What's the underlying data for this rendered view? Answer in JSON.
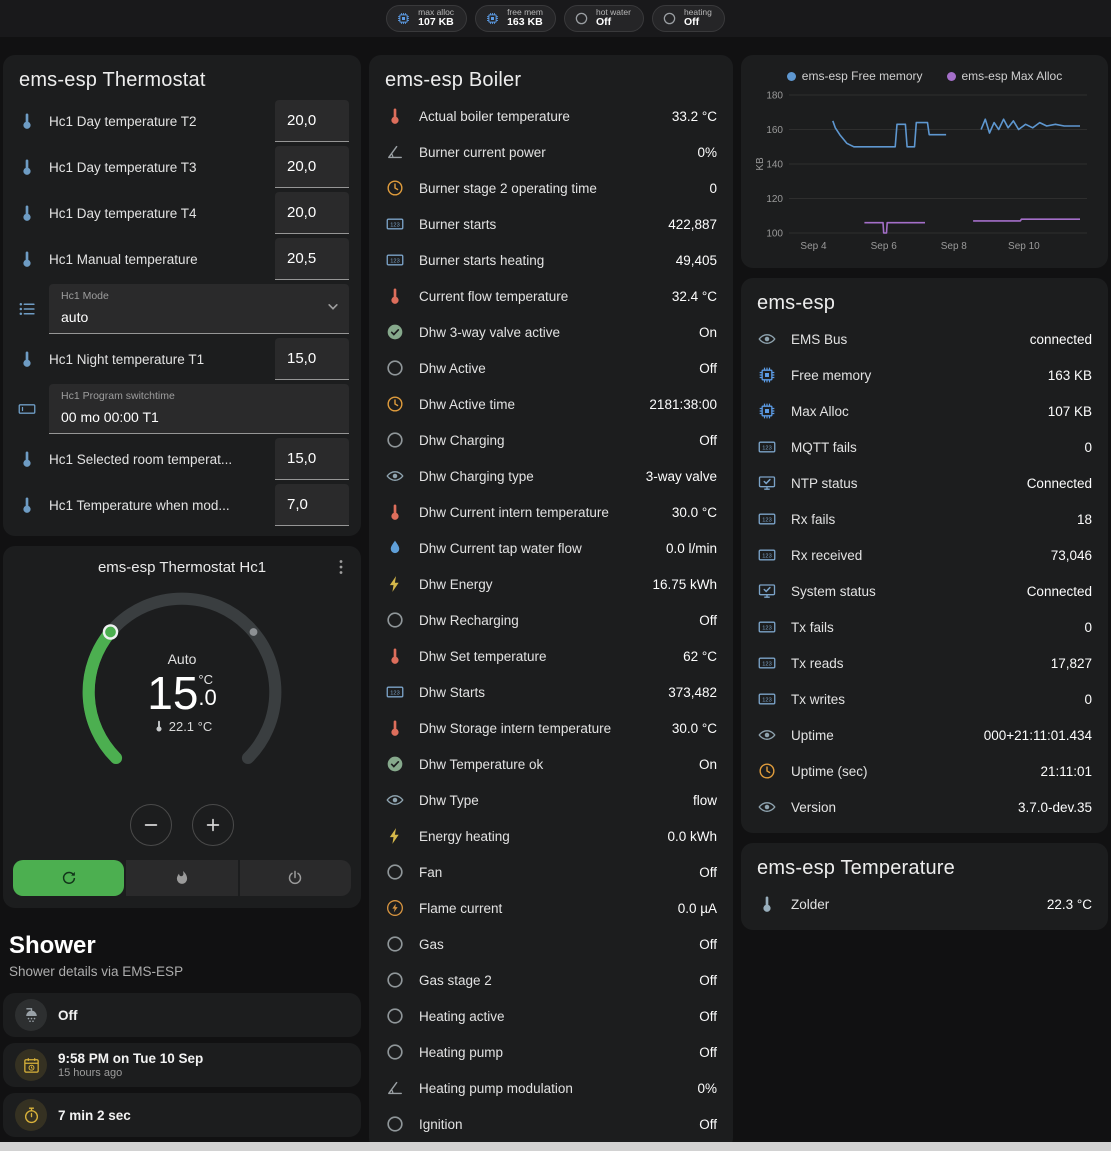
{
  "colors": {
    "page_bg": "#111112",
    "card_bg": "#1c1d1e",
    "accent_green": "#4caf50",
    "free_memory_line": "#5e97d0",
    "max_alloc_line": "#a46fc9"
  },
  "header": {
    "pills": [
      {
        "icon": "memory-icon",
        "color": "#5c9ce6",
        "label": "max alloc",
        "value": "107 KB"
      },
      {
        "icon": "memory-icon",
        "color": "#5c9ce6",
        "label": "free mem",
        "value": "163 KB"
      },
      {
        "icon": "circle-icon",
        "color": "#9b9fa3",
        "label": "hot water",
        "value": "Off"
      },
      {
        "icon": "circle-icon",
        "color": "#9b9fa3",
        "label": "heating",
        "value": "Off"
      }
    ]
  },
  "thermostat_card": {
    "title": "ems-esp Thermostat",
    "rows": [
      {
        "type": "number",
        "icon": "thermometer-water-icon",
        "color": "#6e9cc4",
        "label": "Hc1 Day temperature T2",
        "value": "20,0"
      },
      {
        "type": "number",
        "icon": "thermometer-water-icon",
        "color": "#6e9cc4",
        "label": "Hc1 Day temperature T3",
        "value": "20,0"
      },
      {
        "type": "number",
        "icon": "thermometer-water-icon",
        "color": "#6e9cc4",
        "label": "Hc1 Day temperature T4",
        "value": "20,0"
      },
      {
        "type": "number",
        "icon": "thermometer-water-icon",
        "color": "#6e9cc4",
        "label": "Hc1 Manual temperature",
        "value": "20,5"
      },
      {
        "type": "select",
        "icon": "list-icon",
        "color": "#6e9cc4",
        "label": "Hc1 Mode",
        "value": "auto"
      },
      {
        "type": "number",
        "icon": "thermometer-water-icon",
        "color": "#6e9cc4",
        "label": "Hc1 Night temperature T1",
        "value": "15,0"
      },
      {
        "type": "textfield",
        "icon": "textbox-icon",
        "color": "#6e9cc4",
        "label": "Hc1 Program switchtime",
        "value": "00 mo 00:00 T1"
      },
      {
        "type": "number",
        "icon": "thermometer-water-icon",
        "color": "#6e9cc4",
        "label": "Hc1 Selected room temperat...",
        "value": "15,0"
      },
      {
        "type": "number",
        "icon": "thermometer-water-icon",
        "color": "#6e9cc4",
        "label": "Hc1 Temperature when mod...",
        "value": "7,0"
      }
    ]
  },
  "hc1_card": {
    "title": "ems-esp Thermostat Hc1",
    "mode": "Auto",
    "target_int": "15",
    "target_frac": ".0",
    "unit": "°C",
    "current": "22.1 °C"
  },
  "shower": {
    "heading": "Shower",
    "subtitle": "Shower details via EMS-ESP",
    "tiles": [
      {
        "icon": "shower-icon",
        "color": "#9aa2a8",
        "primary": "Off",
        "secondary": ""
      },
      {
        "icon": "calendar-clock-icon",
        "color": "#d9b23a",
        "primary": "9:58 PM on Tue 10 Sep",
        "secondary": "15 hours ago"
      },
      {
        "icon": "timer-icon",
        "color": "#d9b23a",
        "primary": "7 min 2 sec",
        "secondary": ""
      }
    ]
  },
  "boiler_card": {
    "title": "ems-esp Boiler",
    "rows": [
      {
        "icon": "thermometer-icon",
        "color": "#dd6e5c",
        "label": "Actual boiler temperature",
        "value": "33.2 °C"
      },
      {
        "icon": "angle-icon",
        "color": "#9aa0a4",
        "label": "Burner current power",
        "value": "0%"
      },
      {
        "icon": "clock-icon",
        "color": "#de9b3c",
        "label": "Burner stage 2 operating time",
        "value": "0"
      },
      {
        "icon": "counter-icon",
        "color": "#7ba3c8",
        "label": "Burner starts",
        "value": "422,887"
      },
      {
        "icon": "counter-icon",
        "color": "#7ba3c8",
        "label": "Burner starts heating",
        "value": "49,405"
      },
      {
        "icon": "thermometer-icon",
        "color": "#dd6e5c",
        "label": "Current flow temperature",
        "value": "32.4 °C"
      },
      {
        "icon": "check-circle-icon",
        "color": "#86a98c",
        "label": "Dhw 3-way valve active",
        "value": "On"
      },
      {
        "icon": "circle-icon",
        "color": "#8f9699",
        "label": "Dhw Active",
        "value": "Off"
      },
      {
        "icon": "clock-icon",
        "color": "#de9b3c",
        "label": "Dhw Active time",
        "value": "2181:38:00"
      },
      {
        "icon": "circle-icon",
        "color": "#8f9699",
        "label": "Dhw Charging",
        "value": "Off"
      },
      {
        "icon": "eye-icon",
        "color": "#8fa4b0",
        "label": "Dhw Charging type",
        "value": "3-way valve"
      },
      {
        "icon": "thermometer-icon",
        "color": "#dd6e5c",
        "label": "Dhw Current intern temperature",
        "value": "30.0 °C"
      },
      {
        "icon": "water-pump-icon",
        "color": "#5f9fd8",
        "label": "Dhw Current tap water flow",
        "value": "0.0 l/min"
      },
      {
        "icon": "flash-icon",
        "color": "#d4b74a",
        "label": "Dhw Energy",
        "value": "16.75 kWh"
      },
      {
        "icon": "circle-icon",
        "color": "#8f9699",
        "label": "Dhw Recharging",
        "value": "Off"
      },
      {
        "icon": "thermometer-icon",
        "color": "#dd6e5c",
        "label": "Dhw Set temperature",
        "value": "62 °C"
      },
      {
        "icon": "counter-icon",
        "color": "#7ba3c8",
        "label": "Dhw Starts",
        "value": "373,482"
      },
      {
        "icon": "thermometer-icon",
        "color": "#dd6e5c",
        "label": "Dhw Storage intern temperature",
        "value": "30.0 °C"
      },
      {
        "icon": "check-circle-icon",
        "color": "#86a98c",
        "label": "Dhw Temperature ok",
        "value": "On"
      },
      {
        "icon": "eye-icon",
        "color": "#8fa4b0",
        "label": "Dhw Type",
        "value": "flow"
      },
      {
        "icon": "flash-icon",
        "color": "#d4b74a",
        "label": "Energy heating",
        "value": "0.0 kWh"
      },
      {
        "icon": "circle-icon",
        "color": "#8f9699",
        "label": "Fan",
        "value": "Off"
      },
      {
        "icon": "flash-circle-icon",
        "color": "#d79440",
        "label": "Flame current",
        "value": "0.0 µA"
      },
      {
        "icon": "circle-icon",
        "color": "#8f9699",
        "label": "Gas",
        "value": "Off"
      },
      {
        "icon": "circle-icon",
        "color": "#8f9699",
        "label": "Gas stage 2",
        "value": "Off"
      },
      {
        "icon": "circle-icon",
        "color": "#8f9699",
        "label": "Heating active",
        "value": "Off"
      },
      {
        "icon": "circle-icon",
        "color": "#8f9699",
        "label": "Heating pump",
        "value": "Off"
      },
      {
        "icon": "angle-icon",
        "color": "#9aa0a4",
        "label": "Heating pump modulation",
        "value": "0%"
      },
      {
        "icon": "circle-icon",
        "color": "#8f9699",
        "label": "Ignition",
        "value": "Off"
      }
    ]
  },
  "chart_card": {
    "chart_data": {
      "type": "line",
      "title": "",
      "ylabel": "KB",
      "ylim": [
        100,
        180
      ],
      "yticks": [
        100,
        120,
        140,
        160,
        180
      ],
      "xlim": [
        3.3,
        11.8
      ],
      "xticks": [
        {
          "x": 4,
          "label": "Sep 4"
        },
        {
          "x": 6,
          "label": "Sep 6"
        },
        {
          "x": 8,
          "label": "Sep 8"
        },
        {
          "x": 10,
          "label": "Sep 10"
        }
      ],
      "legend_position": "top",
      "grid": true,
      "series": [
        {
          "name": "ems-esp Free memory",
          "color": "#5e97d0",
          "segments": [
            [
              [
                4.55,
                165
              ],
              [
                4.62,
                161
              ],
              [
                4.75,
                157
              ],
              [
                4.95,
                152
              ],
              [
                5.15,
                150
              ],
              [
                6.33,
                150
              ],
              [
                6.38,
                163
              ],
              [
                6.62,
                163
              ],
              [
                6.67,
                150
              ],
              [
                6.88,
                150
              ],
              [
                6.93,
                164
              ],
              [
                7.25,
                164
              ],
              [
                7.3,
                157
              ],
              [
                7.78,
                157
              ]
            ],
            [
              [
                8.78,
                160
              ],
              [
                8.9,
                166
              ],
              [
                9.02,
                158
              ],
              [
                9.15,
                164
              ],
              [
                9.28,
                160
              ],
              [
                9.42,
                166
              ],
              [
                9.55,
                161
              ],
              [
                9.7,
                165
              ],
              [
                9.85,
                160
              ],
              [
                10.05,
                163
              ],
              [
                10.25,
                161
              ],
              [
                10.45,
                164
              ],
              [
                10.65,
                162
              ],
              [
                10.9,
                163
              ],
              [
                11.15,
                162
              ],
              [
                11.6,
                162
              ]
            ]
          ]
        },
        {
          "name": "ems-esp Max Alloc",
          "color": "#a46fc9",
          "segments": [
            [
              [
                5.45,
                106
              ],
              [
                5.98,
                106
              ],
              [
                6.0,
                100
              ],
              [
                6.08,
                100
              ],
              [
                6.1,
                106
              ],
              [
                7.18,
                106
              ]
            ],
            [
              [
                8.55,
                107
              ],
              [
                9.9,
                107
              ],
              [
                9.93,
                108
              ],
              [
                11.6,
                108
              ]
            ]
          ]
        }
      ]
    }
  },
  "esp_card": {
    "title": "ems-esp",
    "rows": [
      {
        "icon": "eye-icon",
        "color": "#8fa4b0",
        "label": "EMS Bus",
        "value": "connected"
      },
      {
        "icon": "memory-icon",
        "color": "#5c9ce6",
        "label": "Free memory",
        "value": "163 KB"
      },
      {
        "icon": "memory-icon",
        "color": "#5c9ce6",
        "label": "Max Alloc",
        "value": "107 KB"
      },
      {
        "icon": "counter-icon",
        "color": "#7ba3c8",
        "label": "MQTT fails",
        "value": "0"
      },
      {
        "icon": "monitor-check-icon",
        "color": "#7ba3c8",
        "label": "NTP status",
        "value": "Connected"
      },
      {
        "icon": "counter-icon",
        "color": "#7ba3c8",
        "label": "Rx fails",
        "value": "18"
      },
      {
        "icon": "counter-icon",
        "color": "#7ba3c8",
        "label": "Rx received",
        "value": "73,046"
      },
      {
        "icon": "monitor-check-icon",
        "color": "#7ba3c8",
        "label": "System status",
        "value": "Connected"
      },
      {
        "icon": "counter-icon",
        "color": "#7ba3c8",
        "label": "Tx fails",
        "value": "0"
      },
      {
        "icon": "counter-icon",
        "color": "#7ba3c8",
        "label": "Tx reads",
        "value": "17,827"
      },
      {
        "icon": "counter-icon",
        "color": "#7ba3c8",
        "label": "Tx writes",
        "value": "0"
      },
      {
        "icon": "eye-icon",
        "color": "#8fa4b0",
        "label": "Uptime",
        "value": "000+21:11:01.434"
      },
      {
        "icon": "clock-icon",
        "color": "#de9b3c",
        "label": "Uptime (sec)",
        "value": "21:11:01"
      },
      {
        "icon": "eye-icon",
        "color": "#8fa4b0",
        "label": "Version",
        "value": "3.7.0-dev.35"
      }
    ]
  },
  "temp_card": {
    "title": "ems-esp Temperature",
    "rows": [
      {
        "icon": "thermometer-icon",
        "color": "#98aebc",
        "label": "Zolder",
        "value": "22.3 °C"
      }
    ]
  }
}
